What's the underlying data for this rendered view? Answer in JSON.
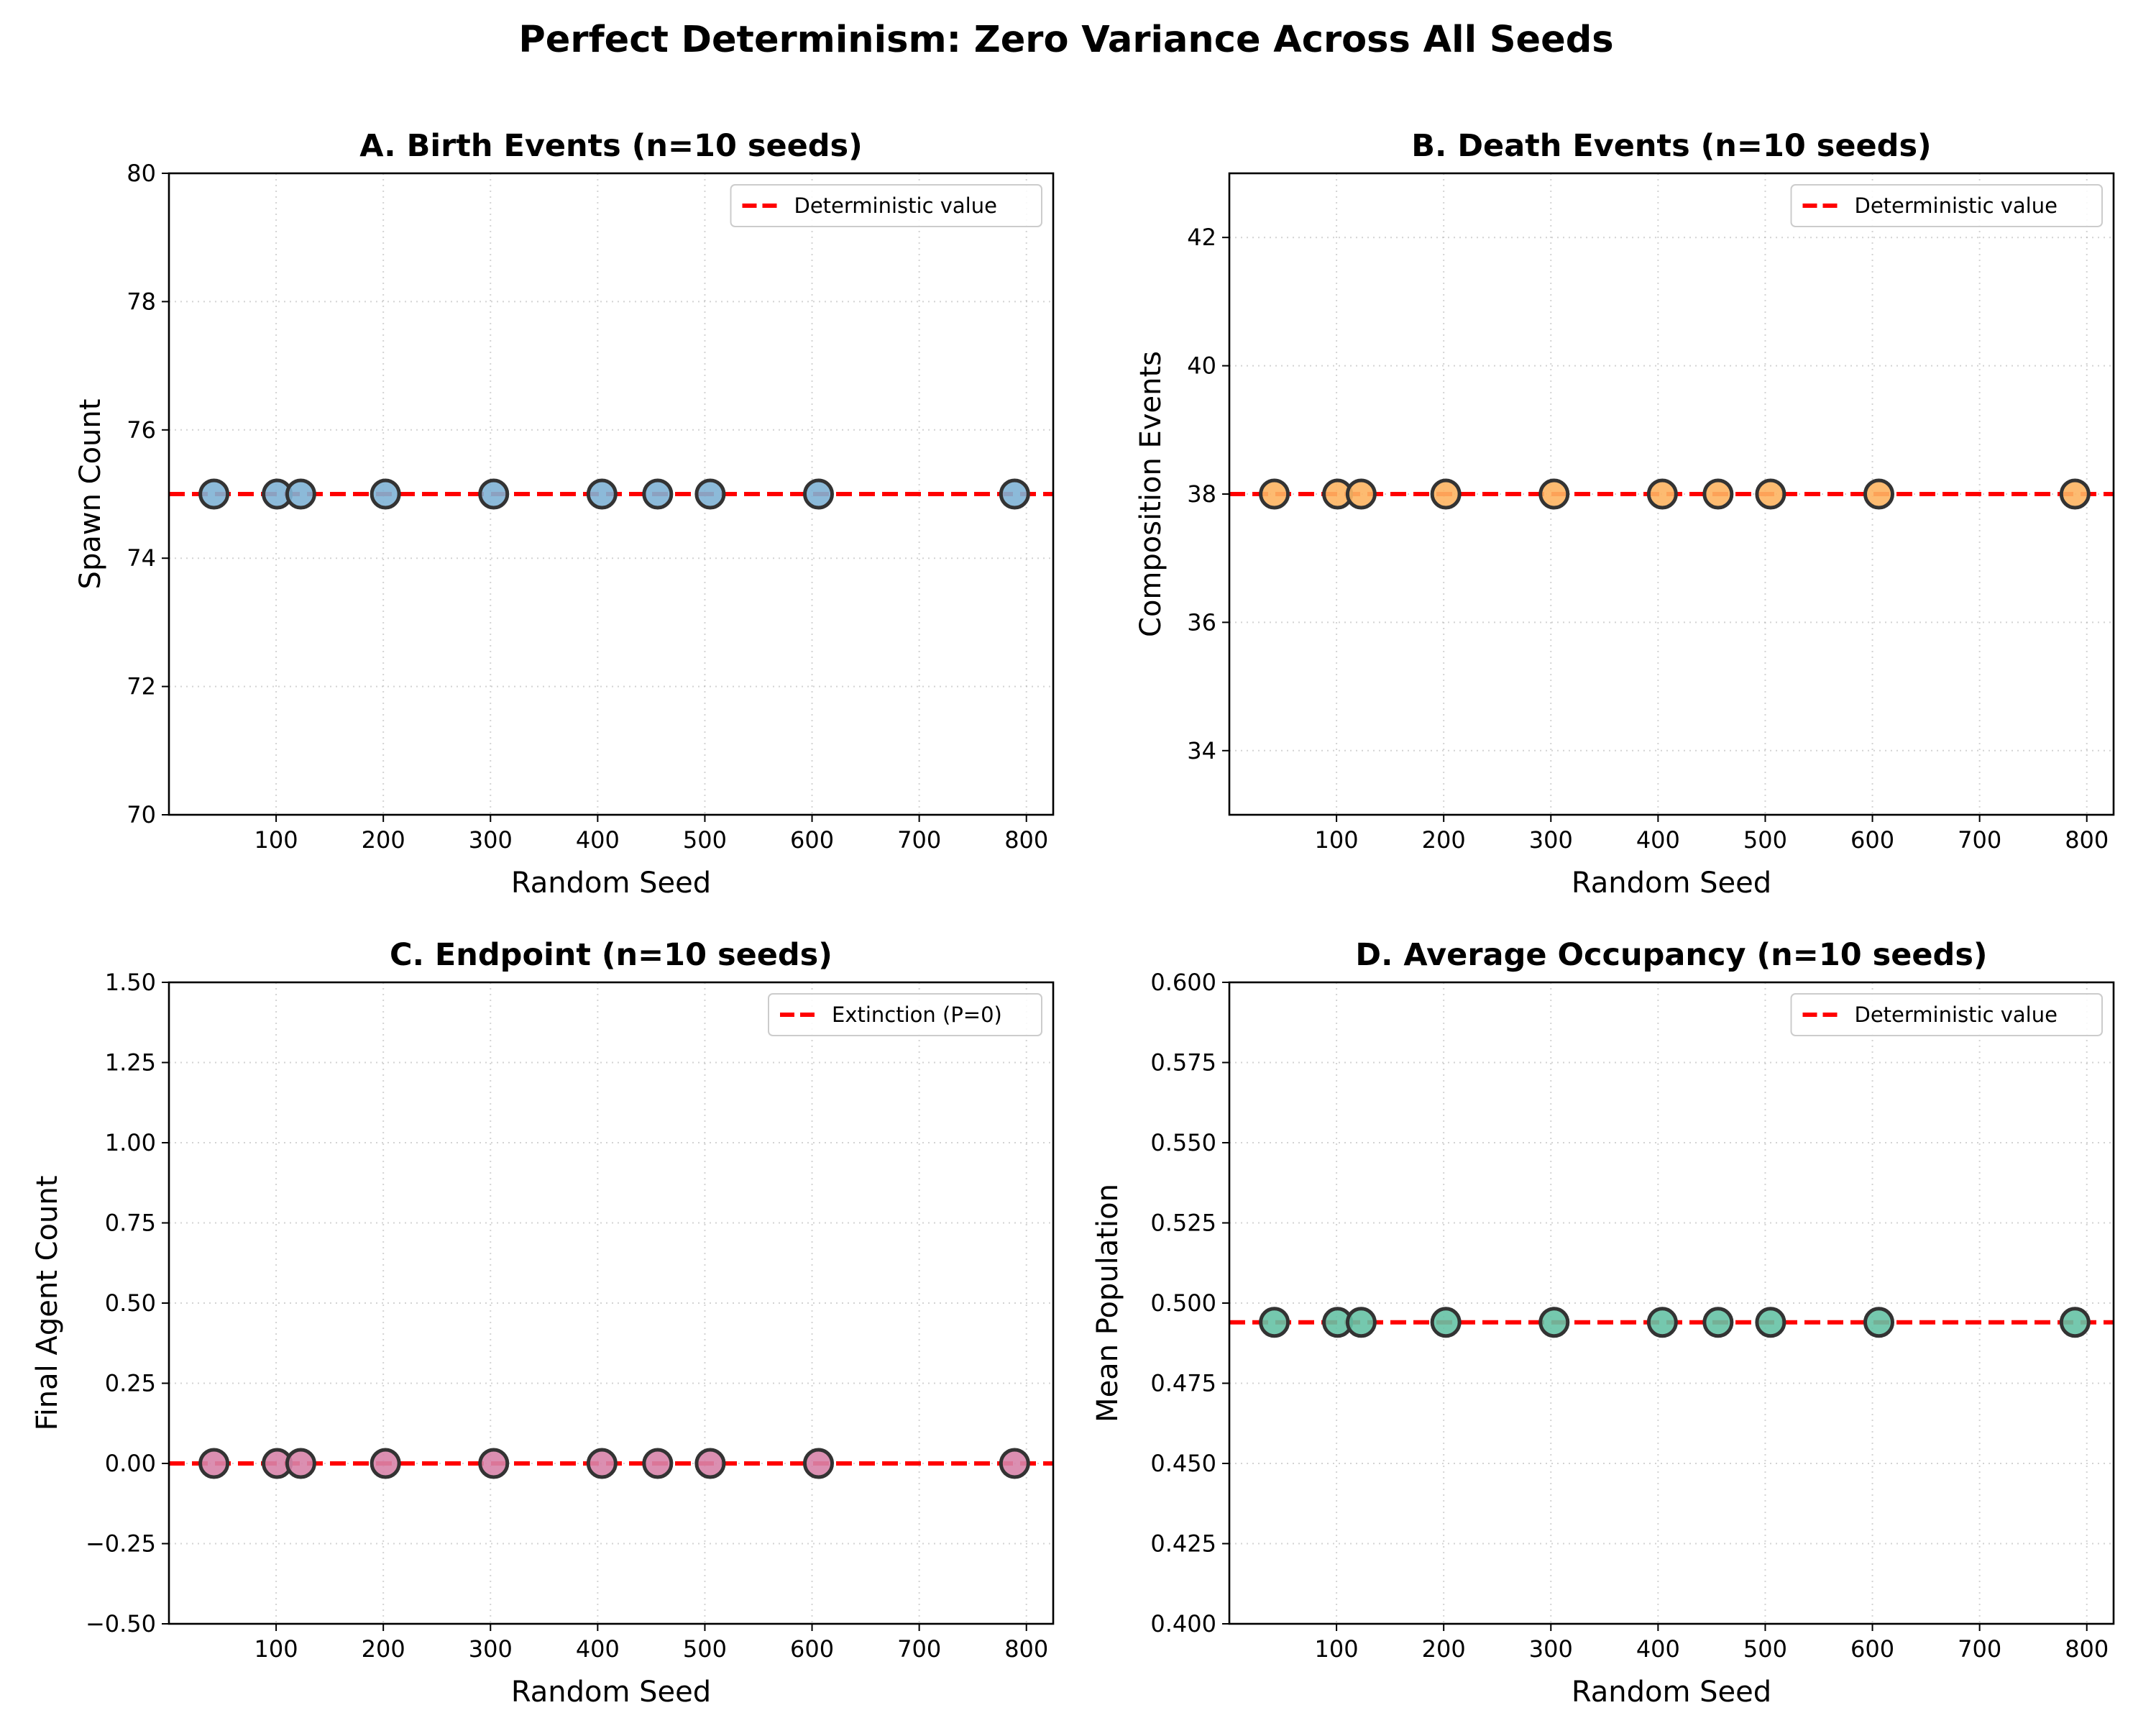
{
  "figure_title": "Perfect Determinism: Zero Variance Across All Seeds",
  "colors": {
    "reference_line": "#ff0000",
    "marker_edge": "#333333",
    "panel_a": "#7fb2d5",
    "panel_b": "#fdb462",
    "panel_c": "#d783a8",
    "panel_d": "#66c2a5"
  },
  "chart_data": [
    {
      "type": "scatter",
      "title": "A. Birth Events (n=10 seeds)",
      "xlabel": "Random Seed",
      "ylabel": "Spawn Count",
      "xlim": [
        0,
        825
      ],
      "ylim": [
        70,
        80
      ],
      "xticks": [
        100,
        200,
        300,
        400,
        500,
        600,
        700,
        800
      ],
      "xtick_labels": [
        "100",
        "200",
        "300",
        "400",
        "500",
        "600",
        "700",
        "800"
      ],
      "yticks": [
        70,
        72,
        74,
        76,
        78,
        80
      ],
      "ytick_labels": [
        "70",
        "72",
        "74",
        "76",
        "78",
        "80"
      ],
      "x": [
        42,
        101,
        123,
        202,
        303,
        404,
        456,
        505,
        606,
        789
      ],
      "y": [
        75,
        75,
        75,
        75,
        75,
        75,
        75,
        75,
        75,
        75
      ],
      "reference_line": {
        "value": 75,
        "label": "Deterministic value"
      },
      "legend": "top-right",
      "grid": true,
      "color": "#7fb2d5"
    },
    {
      "type": "scatter",
      "title": "B. Death Events (n=10 seeds)",
      "xlabel": "Random Seed",
      "ylabel": "Composition Events",
      "xlim": [
        0,
        825
      ],
      "ylim": [
        33,
        43
      ],
      "xticks": [
        100,
        200,
        300,
        400,
        500,
        600,
        700,
        800
      ],
      "xtick_labels": [
        "100",
        "200",
        "300",
        "400",
        "500",
        "600",
        "700",
        "800"
      ],
      "yticks": [
        34,
        36,
        38,
        40,
        42
      ],
      "ytick_labels": [
        "34",
        "36",
        "38",
        "40",
        "42"
      ],
      "x": [
        42,
        101,
        123,
        202,
        303,
        404,
        456,
        505,
        606,
        789
      ],
      "y": [
        38,
        38,
        38,
        38,
        38,
        38,
        38,
        38,
        38,
        38
      ],
      "reference_line": {
        "value": 38,
        "label": "Deterministic value"
      },
      "legend": "top-right",
      "grid": true,
      "color": "#fdb462"
    },
    {
      "type": "scatter",
      "title": "C. Endpoint (n=10 seeds)",
      "xlabel": "Random Seed",
      "ylabel": "Final Agent Count",
      "xlim": [
        0,
        825
      ],
      "ylim": [
        -0.5,
        1.5
      ],
      "xticks": [
        100,
        200,
        300,
        400,
        500,
        600,
        700,
        800
      ],
      "xtick_labels": [
        "100",
        "200",
        "300",
        "400",
        "500",
        "600",
        "700",
        "800"
      ],
      "yticks": [
        -0.5,
        -0.25,
        0,
        0.25,
        0.5,
        0.75,
        1.0,
        1.25,
        1.5
      ],
      "ytick_labels": [
        "−0.50",
        "−0.25",
        "0.00",
        "0.25",
        "0.50",
        "0.75",
        "1.00",
        "1.25",
        "1.50"
      ],
      "x": [
        42,
        101,
        123,
        202,
        303,
        404,
        456,
        505,
        606,
        789
      ],
      "y": [
        0,
        0,
        0,
        0,
        0,
        0,
        0,
        0,
        0,
        0
      ],
      "reference_line": {
        "value": 0,
        "label": "Extinction (P=0)"
      },
      "legend": "top-right",
      "grid": true,
      "color": "#d783a8"
    },
    {
      "type": "scatter",
      "title": "D. Average Occupancy (n=10 seeds)",
      "xlabel": "Random Seed",
      "ylabel": "Mean Population",
      "xlim": [
        0,
        825
      ],
      "ylim": [
        0.4,
        0.6
      ],
      "xticks": [
        100,
        200,
        300,
        400,
        500,
        600,
        700,
        800
      ],
      "xtick_labels": [
        "100",
        "200",
        "300",
        "400",
        "500",
        "600",
        "700",
        "800"
      ],
      "yticks": [
        0.4,
        0.425,
        0.45,
        0.475,
        0.5,
        0.525,
        0.55,
        0.575,
        0.6
      ],
      "ytick_labels": [
        "0.400",
        "0.425",
        "0.450",
        "0.475",
        "0.500",
        "0.525",
        "0.550",
        "0.575",
        "0.600"
      ],
      "x": [
        42,
        101,
        123,
        202,
        303,
        404,
        456,
        505,
        606,
        789
      ],
      "y": [
        0.494,
        0.494,
        0.494,
        0.494,
        0.494,
        0.494,
        0.494,
        0.494,
        0.494,
        0.494
      ],
      "reference_line": {
        "value": 0.494,
        "label": "Deterministic value"
      },
      "legend": "top-right",
      "grid": true,
      "color": "#66c2a5"
    }
  ]
}
